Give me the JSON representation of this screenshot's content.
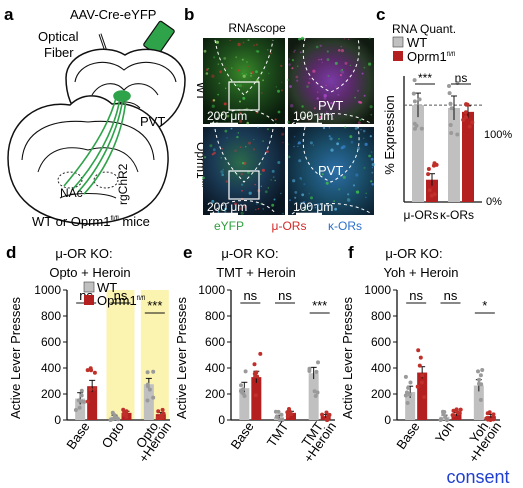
{
  "panels": {
    "a": {
      "label": "a",
      "virus": "AAV-Cre-eYFP",
      "fiber_line1": "Optical",
      "fiber_line2": "Fiber",
      "pvt": "PVT",
      "rg": "rgChR2",
      "nac": "NAc",
      "caption": "WT or Oprm1",
      "caption_sup": "fl/fl",
      "caption_suffix": " mice"
    },
    "b": {
      "label": "b",
      "title": "RNAscope",
      "wt": "WT",
      "oprm": "Oprm1",
      "oprm_sup": "fl/fl",
      "scale_big": "200 μm",
      "scale_small": "100 μm",
      "pvt": "PVT",
      "legend": [
        {
          "text": "eYFP",
          "color": "#2e9e3e"
        },
        {
          "text": "μ-ORs",
          "color": "#d22a2a"
        },
        {
          "text": "κ-ORs",
          "color": "#2c70c9"
        }
      ]
    },
    "c": {
      "label": "c",
      "title": "RNA Quant.",
      "legend": [
        {
          "text": "WT",
          "sup": "",
          "color": "#c0c0c0"
        },
        {
          "text": "Oprm1",
          "sup": "fl/fl",
          "color": "#b3201f"
        }
      ],
      "ylabel": "% Expression",
      "ref_top": "100%",
      "ref_bottom": "0%",
      "sig": [
        "***",
        "ns"
      ],
      "groups": [
        "μ-ORs",
        "κ-ORs"
      ]
    },
    "d": {
      "label": "d",
      "title_line1": "μ-OR KO:",
      "title_line2": "Opto + Heroin",
      "legend": [
        {
          "text": "WT",
          "sup": "",
          "color": "#c0c0c0"
        },
        {
          "text": "Oprm1",
          "sup": "fl/fl",
          "color": "#b3201f"
        }
      ],
      "sig": [
        "ns",
        "ns",
        "***"
      ],
      "xlabels": [
        [
          "Base"
        ],
        [
          "Opto"
        ],
        [
          "Opto",
          "+Heroin"
        ]
      ]
    },
    "e": {
      "label": "e",
      "title_line1": "μ-OR KO:",
      "title_line2": "TMT + Heroin",
      "sig": [
        "ns",
        "ns",
        "***"
      ],
      "xlabels": [
        [
          "Base"
        ],
        [
          "TMT"
        ],
        [
          "TMT",
          "+Heroin"
        ]
      ]
    },
    "f": {
      "label": "f",
      "title_line1": "μ-OR KO:",
      "title_line2": "Yoh + Heroin",
      "sig": [
        "ns",
        "ns",
        "*"
      ],
      "xlabels": [
        [
          "Base"
        ],
        [
          "Yoh"
        ],
        [
          "Yoh",
          "+Heroin"
        ]
      ]
    }
  },
  "watermark": "consent",
  "chart_data": [
    {
      "type": "bar",
      "panel": "c",
      "title": "RNA Quant.",
      "ylabel": "% Expression",
      "categories": [
        "μ-ORs",
        "κ-ORs"
      ],
      "ylim": [
        0,
        130
      ],
      "series": [
        {
          "name": "WT",
          "values": [
            100,
            97
          ]
        },
        {
          "name": "Oprm1 fl/fl",
          "values": [
            23,
            93
          ]
        }
      ]
    },
    {
      "type": "bar",
      "panel": "d",
      "title": "μ-OR KO: Opto + Heroin",
      "ylabel": "Active Lever Presses",
      "categories": [
        "Base",
        "Opto",
        "Opto +Heroin"
      ],
      "ylim": [
        0,
        1000
      ],
      "yticks": [
        0,
        200,
        400,
        600,
        800,
        1000
      ],
      "shaded_categories": [
        "Opto",
        "Opto +Heroin"
      ],
      "series": [
        {
          "name": "WT",
          "values": [
            165,
            25,
            275
          ]
        },
        {
          "name": "Oprm1 fl/fl",
          "values": [
            260,
            55,
            45
          ]
        }
      ]
    },
    {
      "type": "bar",
      "panel": "e",
      "title": "μ-OR KO: TMT + Heroin",
      "ylabel": "Active Lever Presses",
      "categories": [
        "Base",
        "TMT",
        "TMT +Heroin"
      ],
      "ylim": [
        0,
        1000
      ],
      "yticks": [
        0,
        200,
        400,
        600,
        800,
        1000
      ],
      "series": [
        {
          "name": "WT",
          "values": [
            245,
            25,
            360
          ]
        },
        {
          "name": "Oprm1 fl/fl",
          "values": [
            330,
            55,
            30
          ]
        }
      ]
    },
    {
      "type": "bar",
      "panel": "f",
      "title": "μ-OR KO: Yoh + Heroin",
      "ylabel": "Active Lever Presses",
      "categories": [
        "Base",
        "Yoh",
        "Yoh +Heroin"
      ],
      "ylim": [
        0,
        1000
      ],
      "yticks": [
        0,
        200,
        400,
        600,
        800,
        1000
      ],
      "series": [
        {
          "name": "WT",
          "values": [
            215,
            25,
            265
          ]
        },
        {
          "name": "Oprm1 fl/fl",
          "values": [
            365,
            45,
            30
          ]
        }
      ]
    }
  ]
}
